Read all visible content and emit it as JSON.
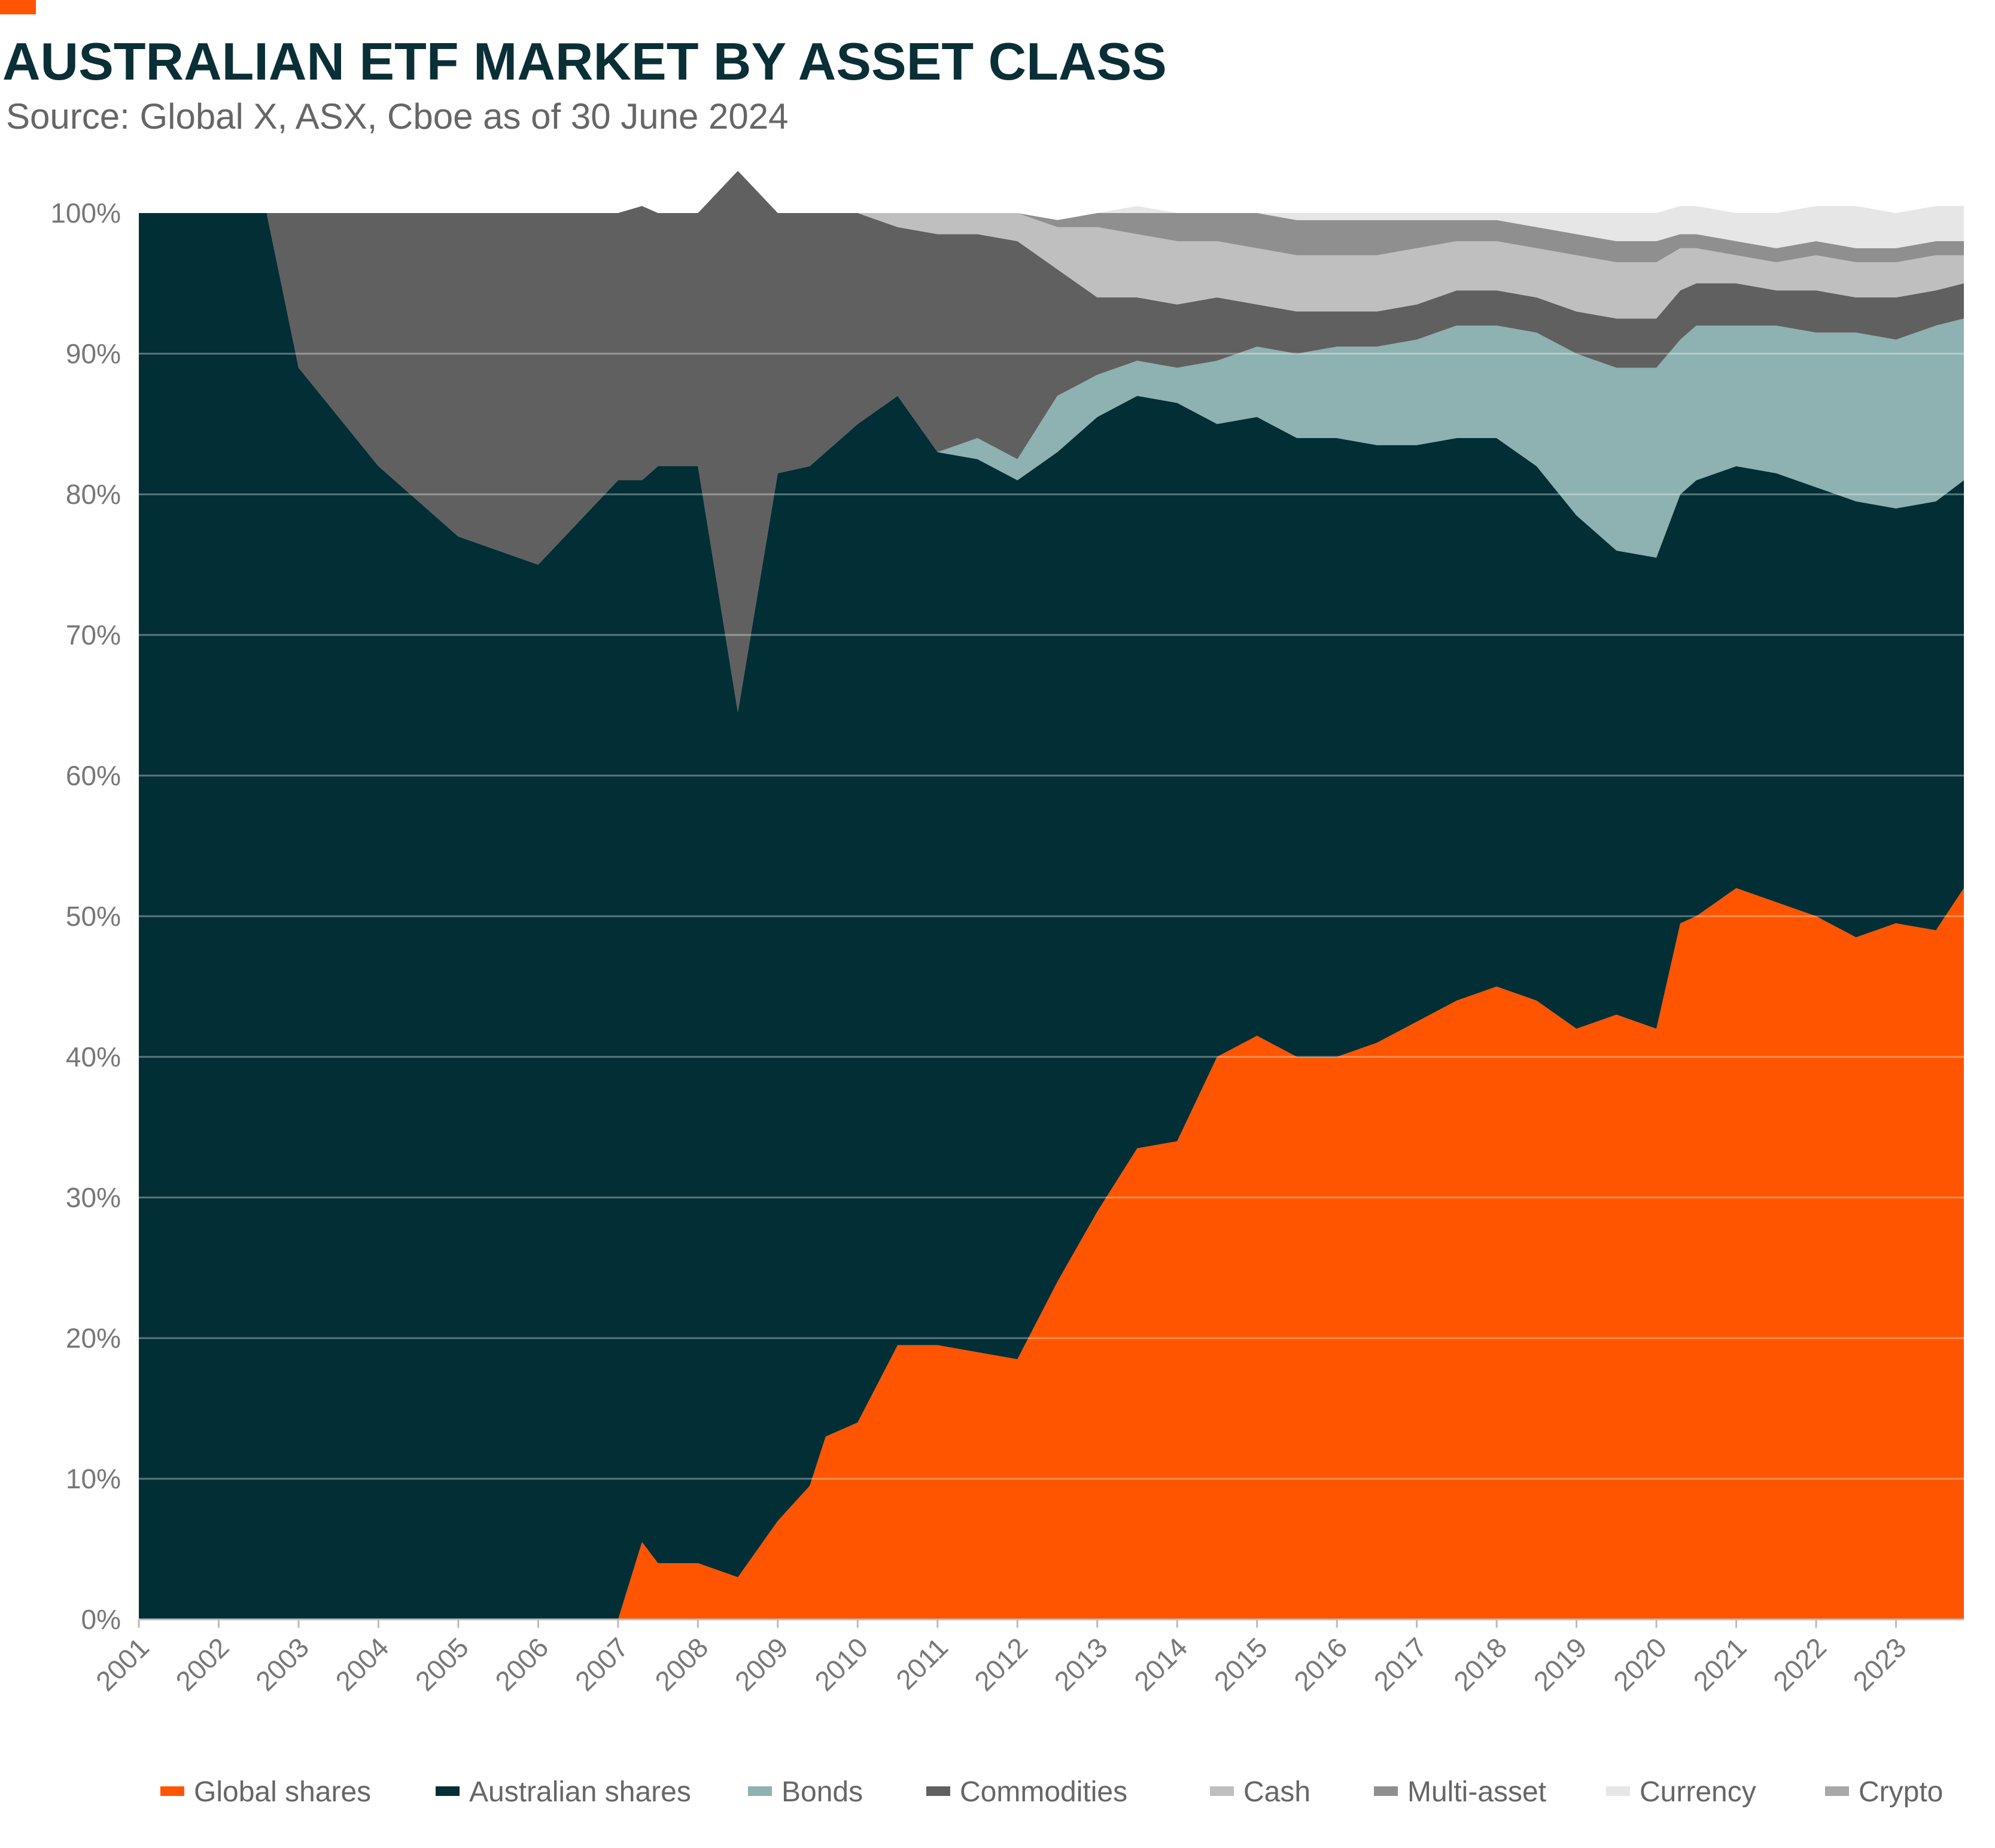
{
  "header": {
    "title": "AUSTRALIAN ETF MARKET BY ASSET CLASS",
    "subtitle": "Source: Global X, ASX, Cboe as of 30 June 2024"
  },
  "colors": {
    "accent": "#ff5500",
    "title": "#0a2f36",
    "global_shares": "#ff5500",
    "australian_shares": "#022e36",
    "bonds": "#8eb1b1",
    "commodities": "#606060",
    "cash": "#bfbfbf",
    "multi_asset": "#8f8f8f",
    "currency": "#e6e6e6",
    "crypto": "#a8a8a8"
  },
  "chart_data": {
    "type": "area",
    "stacked": true,
    "percent": true,
    "title": "AUSTRALIAN ETF MARKET BY ASSET CLASS",
    "subtitle": "Source: Global X, ASX, Cboe as of 30 June 2024",
    "xlabel": "",
    "ylabel": "",
    "xlim": [
      2001,
      2023.85
    ],
    "ylim": [
      0,
      100
    ],
    "x_ticks": [
      "2001",
      "2002",
      "2003",
      "2004",
      "2005",
      "2006",
      "2007",
      "2008",
      "2009",
      "2010",
      "2011",
      "2012",
      "2013",
      "2014",
      "2015",
      "2016",
      "2017",
      "2018",
      "2019",
      "2020",
      "2021",
      "2022",
      "2023"
    ],
    "y_ticks": [
      "0%",
      "10%",
      "20%",
      "30%",
      "40%",
      "50%",
      "60%",
      "70%",
      "80%",
      "90%",
      "100%"
    ],
    "grid": true,
    "legend_position": "bottom",
    "x": [
      2001,
      2002.6,
      2003,
      2004,
      2005,
      2006,
      2007,
      2007.3,
      2007.5,
      2008,
      2008.5,
      2009,
      2009.4,
      2009.6,
      2010,
      2010.5,
      2011,
      2011.5,
      2012,
      2012.5,
      2013,
      2013.5,
      2014,
      2014.5,
      2015,
      2015.5,
      2016,
      2016.5,
      2017,
      2017.5,
      2018,
      2018.5,
      2019,
      2019.5,
      2020,
      2020.3,
      2020.5,
      2021,
      2021.5,
      2022,
      2022.5,
      2023,
      2023.5,
      2023.85
    ],
    "series": [
      {
        "name": "Global shares",
        "values": [
          0,
          0,
          0,
          0,
          0,
          0,
          0,
          5.5,
          4,
          4,
          3,
          7,
          9.5,
          13,
          14,
          19.5,
          19.5,
          19,
          18.5,
          24,
          29,
          33.5,
          34,
          40,
          41.5,
          40,
          40,
          41,
          42.5,
          44,
          45,
          44,
          42,
          43,
          42,
          49.5,
          50,
          52,
          51,
          50,
          48.5,
          49.5,
          49,
          52
        ]
      },
      {
        "name": "Australian shares",
        "values": [
          100,
          100,
          89,
          82,
          77,
          75,
          81,
          75.5,
          78,
          78,
          61.5,
          74.5,
          72.5,
          70,
          71,
          67.5,
          63.5,
          63.5,
          62.5,
          59,
          56.5,
          53.5,
          52.5,
          45,
          44,
          44,
          44,
          42.5,
          41,
          40,
          39,
          38,
          36.5,
          33,
          33.5,
          30.5,
          31,
          30,
          30.5,
          30.5,
          31,
          29.5,
          30.5,
          29
        ]
      },
      {
        "name": "Bonds",
        "values": [
          0,
          0,
          0,
          0,
          0,
          0,
          0,
          0,
          0,
          0,
          0,
          0,
          0,
          0,
          0,
          0,
          0,
          1.5,
          1.5,
          4,
          3,
          2.5,
          2.5,
          4.5,
          5,
          6,
          6.5,
          7,
          7.5,
          8,
          8,
          9.5,
          11.5,
          13,
          13.5,
          11,
          11,
          10,
          10.5,
          11,
          12,
          12,
          12.5,
          11.5
        ]
      },
      {
        "name": "Commodities",
        "values": [
          0,
          0,
          11,
          18,
          23,
          25,
          19,
          19.5,
          18,
          18,
          38.5,
          18.5,
          18,
          17,
          15,
          12,
          15.5,
          14.5,
          15.5,
          9,
          5.5,
          4.5,
          4.5,
          4.5,
          3,
          3,
          2.5,
          2.5,
          2.5,
          2.5,
          2.5,
          2.5,
          3,
          3.5,
          3.5,
          3.5,
          3,
          3,
          2.5,
          3,
          2.5,
          3,
          2.5,
          2.5
        ]
      },
      {
        "name": "Cash",
        "values": [
          0,
          0,
          0,
          0,
          0,
          0,
          0,
          0,
          0,
          0,
          0,
          0,
          0,
          0,
          0,
          1,
          1.5,
          1.5,
          2,
          3,
          5,
          4.5,
          4.5,
          4,
          4,
          4,
          4,
          4,
          4,
          3.5,
          3.5,
          3.5,
          4,
          4,
          4,
          3,
          2.5,
          2,
          2,
          2.5,
          2.5,
          2.5,
          2.5,
          2
        ]
      },
      {
        "name": "Multi-asset",
        "values": [
          0,
          0,
          0,
          0,
          0,
          0,
          0,
          0,
          0,
          0,
          0,
          0,
          0,
          0,
          0,
          0,
          0,
          0,
          0,
          0.5,
          1,
          1.5,
          2,
          2,
          2.5,
          2.5,
          2.5,
          2.5,
          2,
          1.5,
          1.5,
          1.5,
          1.5,
          1.5,
          1.5,
          1,
          1,
          1,
          1,
          1,
          1,
          1,
          1,
          1
        ]
      },
      {
        "name": "Currency",
        "values": [
          0,
          0,
          0,
          0,
          0,
          0,
          0,
          0,
          0,
          0,
          0,
          0,
          0,
          0,
          0,
          0,
          0,
          0,
          0,
          0,
          0,
          0.5,
          0,
          0,
          0,
          0.5,
          0.5,
          0.5,
          0.5,
          0.5,
          0.5,
          1,
          1.5,
          2,
          2,
          2,
          2,
          2,
          2.5,
          2.5,
          3,
          2.5,
          2.5,
          2.5
        ]
      },
      {
        "name": "Crypto",
        "values": [
          0,
          0,
          0,
          0,
          0,
          0,
          0,
          0,
          0,
          0,
          0,
          0,
          0,
          0,
          0,
          0,
          0,
          0,
          0,
          0,
          0,
          0,
          0,
          0,
          0,
          0,
          0,
          0,
          0,
          0,
          0,
          0,
          0,
          0,
          0,
          0,
          0,
          0,
          0,
          0,
          0,
          0,
          0,
          0
        ]
      }
    ]
  },
  "legend": {
    "items": [
      {
        "label": "Global shares",
        "color": "#ff5500"
      },
      {
        "label": "Australian shares",
        "color": "#022e36"
      },
      {
        "label": "Bonds",
        "color": "#8eb1b1"
      },
      {
        "label": "Commodities",
        "color": "#606060"
      },
      {
        "label": "Cash",
        "color": "#bfbfbf"
      },
      {
        "label": "Multi-asset",
        "color": "#8f8f8f"
      },
      {
        "label": "Currency",
        "color": "#e6e6e6"
      },
      {
        "label": "Crypto",
        "color": "#a8a8a8"
      }
    ]
  }
}
